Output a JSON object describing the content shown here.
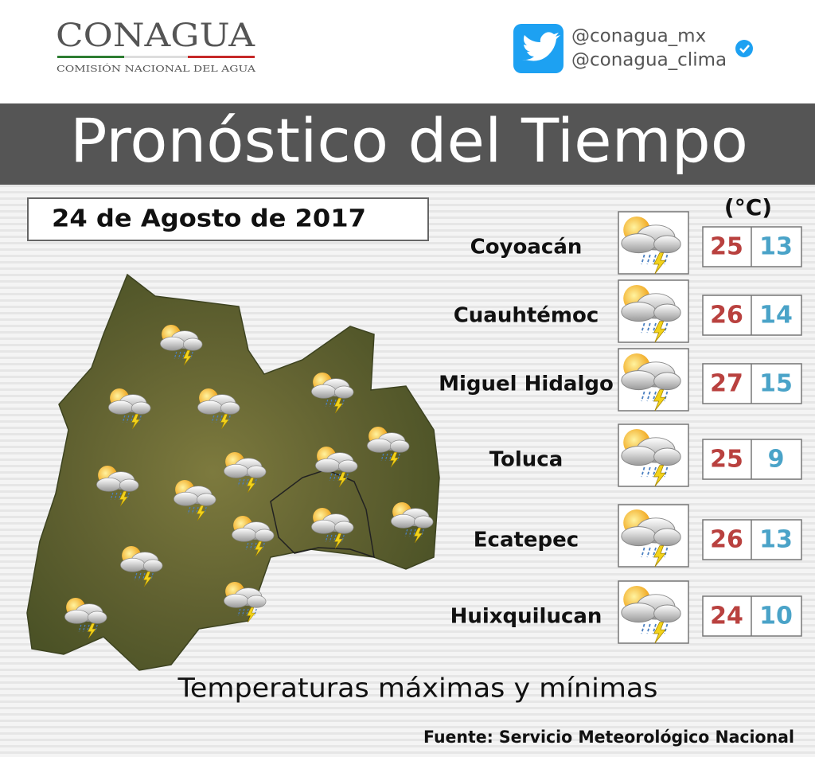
{
  "header": {
    "logo": "CONAGUA",
    "logo_subtitle": "COMISIÓN NACIONAL DEL AGUA",
    "twitter_handles": [
      "@conagua_mx",
      "@conagua_clima"
    ]
  },
  "title": "Pronóstico del Tiempo",
  "date": "24 de Agosto de 2017",
  "unit": "(°C)",
  "forecast": [
    {
      "city": "Coyoacán",
      "max": 25,
      "min": 13
    },
    {
      "city": "Cuauhtémoc",
      "max": 26,
      "min": 14
    },
    {
      "city": "Miguel Hidalgo",
      "max": 27,
      "min": 15
    },
    {
      "city": "Toluca",
      "max": 25,
      "min": 9
    },
    {
      "city": "Ecatepec",
      "max": 26,
      "min": 13
    },
    {
      "city": "Huixquilucan",
      "max": 24,
      "min": 10
    }
  ],
  "caption": "Temperaturas máximas y mínimas",
  "source": "Fuente: Servicio Meteorológico Nacional"
}
